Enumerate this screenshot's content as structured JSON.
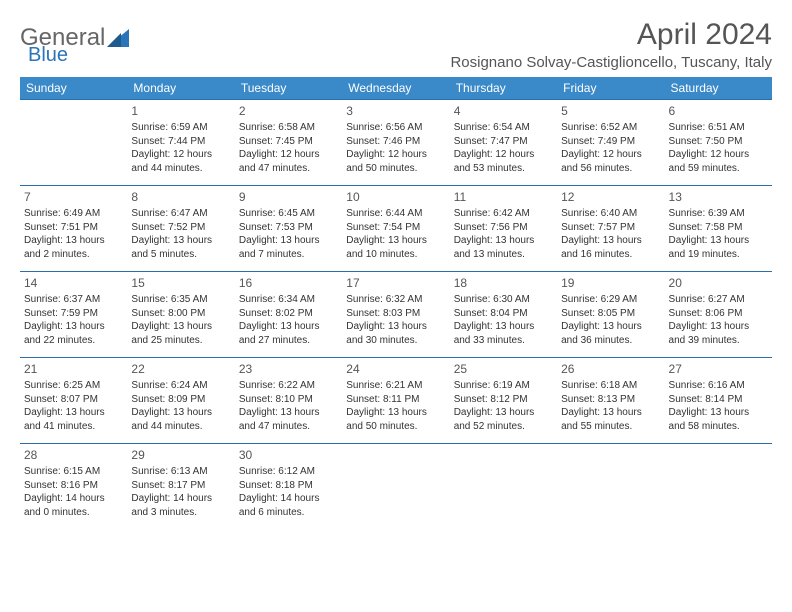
{
  "logo": {
    "text1": "General",
    "text2": "Blue"
  },
  "header": {
    "month_title": "April 2024",
    "location": "Rosignano Solvay-Castiglioncello, Tuscany, Italy"
  },
  "colors": {
    "header_bg": "#3a89c9",
    "header_text": "#ffffff",
    "row_border": "#2a6fa8",
    "logo_blue": "#2a74b8",
    "body_text": "#333333"
  },
  "weekdays": [
    "Sunday",
    "Monday",
    "Tuesday",
    "Wednesday",
    "Thursday",
    "Friday",
    "Saturday"
  ],
  "weeks": [
    [
      null,
      {
        "n": "1",
        "sr": "Sunrise: 6:59 AM",
        "ss": "Sunset: 7:44 PM",
        "dl": "Daylight: 12 hours and 44 minutes."
      },
      {
        "n": "2",
        "sr": "Sunrise: 6:58 AM",
        "ss": "Sunset: 7:45 PM",
        "dl": "Daylight: 12 hours and 47 minutes."
      },
      {
        "n": "3",
        "sr": "Sunrise: 6:56 AM",
        "ss": "Sunset: 7:46 PM",
        "dl": "Daylight: 12 hours and 50 minutes."
      },
      {
        "n": "4",
        "sr": "Sunrise: 6:54 AM",
        "ss": "Sunset: 7:47 PM",
        "dl": "Daylight: 12 hours and 53 minutes."
      },
      {
        "n": "5",
        "sr": "Sunrise: 6:52 AM",
        "ss": "Sunset: 7:49 PM",
        "dl": "Daylight: 12 hours and 56 minutes."
      },
      {
        "n": "6",
        "sr": "Sunrise: 6:51 AM",
        "ss": "Sunset: 7:50 PM",
        "dl": "Daylight: 12 hours and 59 minutes."
      }
    ],
    [
      {
        "n": "7",
        "sr": "Sunrise: 6:49 AM",
        "ss": "Sunset: 7:51 PM",
        "dl": "Daylight: 13 hours and 2 minutes."
      },
      {
        "n": "8",
        "sr": "Sunrise: 6:47 AM",
        "ss": "Sunset: 7:52 PM",
        "dl": "Daylight: 13 hours and 5 minutes."
      },
      {
        "n": "9",
        "sr": "Sunrise: 6:45 AM",
        "ss": "Sunset: 7:53 PM",
        "dl": "Daylight: 13 hours and 7 minutes."
      },
      {
        "n": "10",
        "sr": "Sunrise: 6:44 AM",
        "ss": "Sunset: 7:54 PM",
        "dl": "Daylight: 13 hours and 10 minutes."
      },
      {
        "n": "11",
        "sr": "Sunrise: 6:42 AM",
        "ss": "Sunset: 7:56 PM",
        "dl": "Daylight: 13 hours and 13 minutes."
      },
      {
        "n": "12",
        "sr": "Sunrise: 6:40 AM",
        "ss": "Sunset: 7:57 PM",
        "dl": "Daylight: 13 hours and 16 minutes."
      },
      {
        "n": "13",
        "sr": "Sunrise: 6:39 AM",
        "ss": "Sunset: 7:58 PM",
        "dl": "Daylight: 13 hours and 19 minutes."
      }
    ],
    [
      {
        "n": "14",
        "sr": "Sunrise: 6:37 AM",
        "ss": "Sunset: 7:59 PM",
        "dl": "Daylight: 13 hours and 22 minutes."
      },
      {
        "n": "15",
        "sr": "Sunrise: 6:35 AM",
        "ss": "Sunset: 8:00 PM",
        "dl": "Daylight: 13 hours and 25 minutes."
      },
      {
        "n": "16",
        "sr": "Sunrise: 6:34 AM",
        "ss": "Sunset: 8:02 PM",
        "dl": "Daylight: 13 hours and 27 minutes."
      },
      {
        "n": "17",
        "sr": "Sunrise: 6:32 AM",
        "ss": "Sunset: 8:03 PM",
        "dl": "Daylight: 13 hours and 30 minutes."
      },
      {
        "n": "18",
        "sr": "Sunrise: 6:30 AM",
        "ss": "Sunset: 8:04 PM",
        "dl": "Daylight: 13 hours and 33 minutes."
      },
      {
        "n": "19",
        "sr": "Sunrise: 6:29 AM",
        "ss": "Sunset: 8:05 PM",
        "dl": "Daylight: 13 hours and 36 minutes."
      },
      {
        "n": "20",
        "sr": "Sunrise: 6:27 AM",
        "ss": "Sunset: 8:06 PM",
        "dl": "Daylight: 13 hours and 39 minutes."
      }
    ],
    [
      {
        "n": "21",
        "sr": "Sunrise: 6:25 AM",
        "ss": "Sunset: 8:07 PM",
        "dl": "Daylight: 13 hours and 41 minutes."
      },
      {
        "n": "22",
        "sr": "Sunrise: 6:24 AM",
        "ss": "Sunset: 8:09 PM",
        "dl": "Daylight: 13 hours and 44 minutes."
      },
      {
        "n": "23",
        "sr": "Sunrise: 6:22 AM",
        "ss": "Sunset: 8:10 PM",
        "dl": "Daylight: 13 hours and 47 minutes."
      },
      {
        "n": "24",
        "sr": "Sunrise: 6:21 AM",
        "ss": "Sunset: 8:11 PM",
        "dl": "Daylight: 13 hours and 50 minutes."
      },
      {
        "n": "25",
        "sr": "Sunrise: 6:19 AM",
        "ss": "Sunset: 8:12 PM",
        "dl": "Daylight: 13 hours and 52 minutes."
      },
      {
        "n": "26",
        "sr": "Sunrise: 6:18 AM",
        "ss": "Sunset: 8:13 PM",
        "dl": "Daylight: 13 hours and 55 minutes."
      },
      {
        "n": "27",
        "sr": "Sunrise: 6:16 AM",
        "ss": "Sunset: 8:14 PM",
        "dl": "Daylight: 13 hours and 58 minutes."
      }
    ],
    [
      {
        "n": "28",
        "sr": "Sunrise: 6:15 AM",
        "ss": "Sunset: 8:16 PM",
        "dl": "Daylight: 14 hours and 0 minutes."
      },
      {
        "n": "29",
        "sr": "Sunrise: 6:13 AM",
        "ss": "Sunset: 8:17 PM",
        "dl": "Daylight: 14 hours and 3 minutes."
      },
      {
        "n": "30",
        "sr": "Sunrise: 6:12 AM",
        "ss": "Sunset: 8:18 PM",
        "dl": "Daylight: 14 hours and 6 minutes."
      },
      null,
      null,
      null,
      null
    ]
  ]
}
